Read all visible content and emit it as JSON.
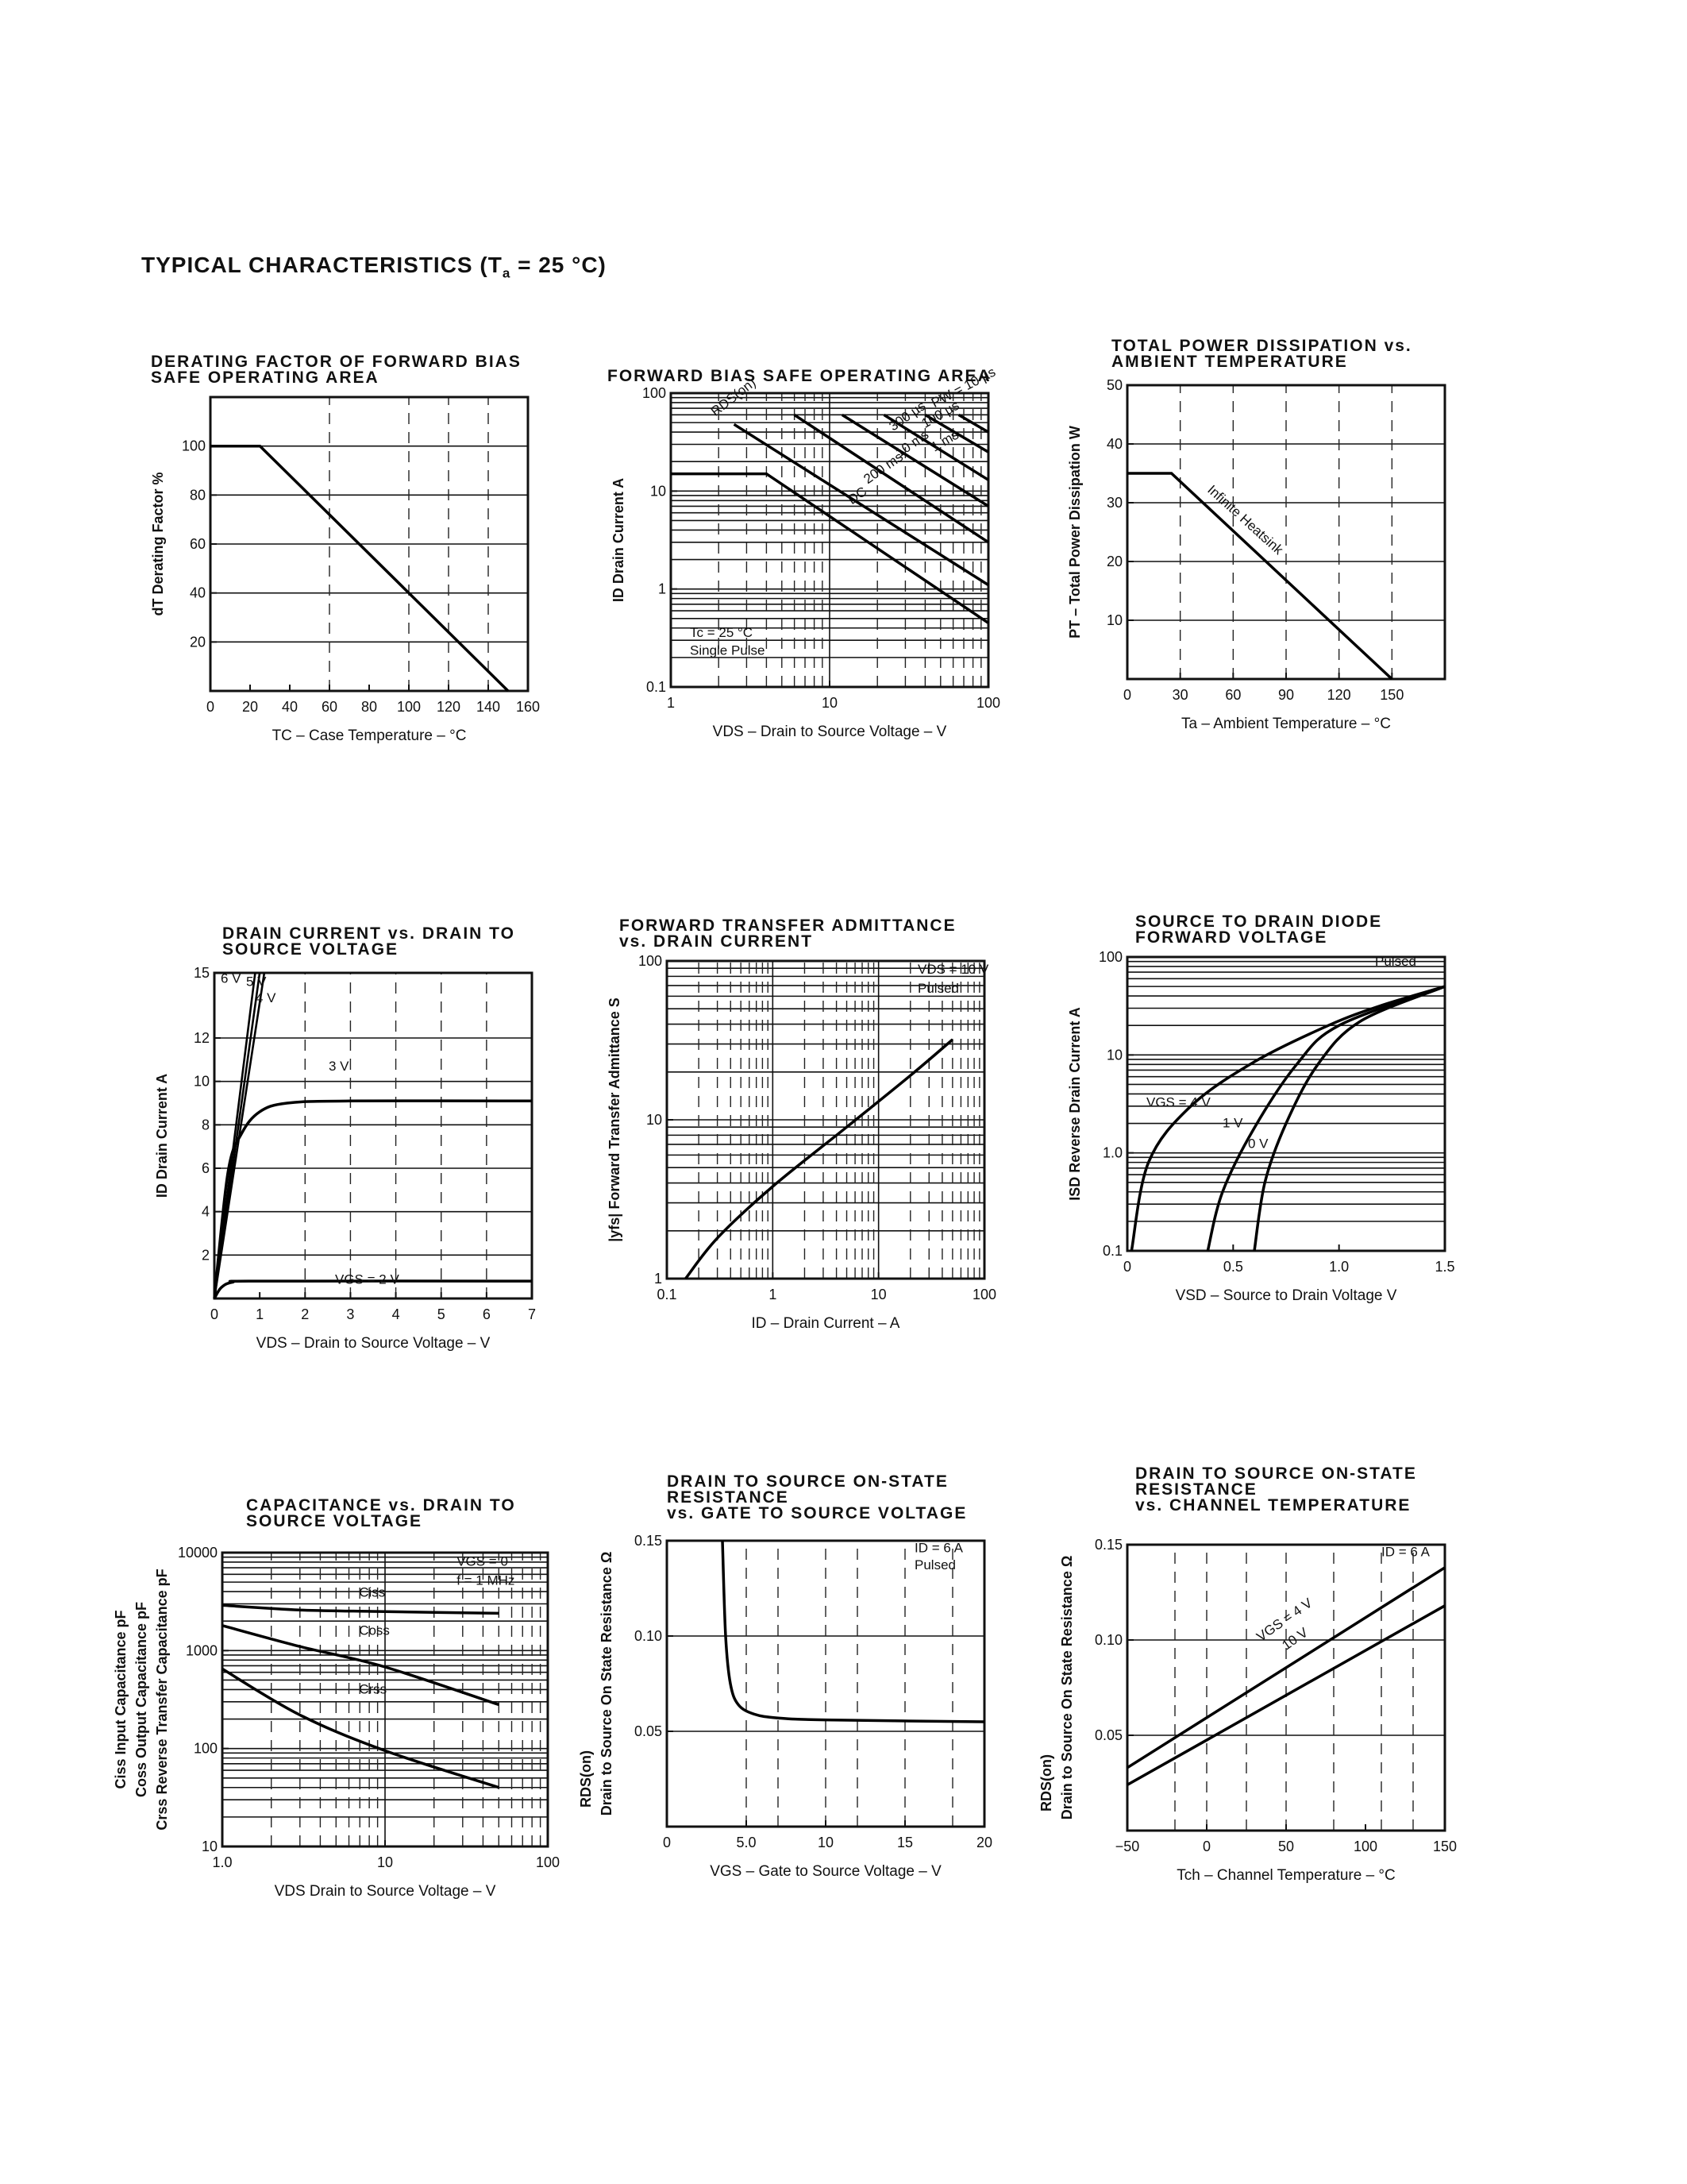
{
  "page": {
    "title_main": "TYPICAL CHARACTERISTICS (T",
    "title_sub": "a",
    "title_tail": " = 25 °C)"
  },
  "chart_data": [
    {
      "id": "derating",
      "type": "line",
      "title_lines": [
        "DERATING FACTOR OF FORWARD BIAS",
        "SAFE OPERATING AREA"
      ],
      "xlabel": "TC – Case Temperature – °C",
      "ylabel": "dT   Derating Factor   %",
      "xlim": [
        0,
        160
      ],
      "ylim": [
        0,
        120
      ],
      "xscale": "linear",
      "yscale": "linear",
      "xticks": [
        0,
        20,
        40,
        60,
        80,
        100,
        120,
        140,
        160
      ],
      "yticks": [
        20,
        40,
        60,
        80,
        100
      ],
      "series": [
        {
          "x": [
            0,
            25,
            150
          ],
          "y": [
            100,
            100,
            0
          ]
        }
      ]
    },
    {
      "id": "fbsoa",
      "type": "line",
      "title_lines": [
        "FORWARD BIAS SAFE OPERATING AREA"
      ],
      "xlabel": "VDS – Drain to Source Voltage – V",
      "ylabel": "ID   Drain Current   A",
      "xlim": [
        1,
        100
      ],
      "ylim": [
        0.1,
        100
      ],
      "xscale": "log",
      "yscale": "log",
      "xticks": [
        1,
        10,
        100
      ],
      "xtick_labels": [
        "1",
        "10",
        "100"
      ],
      "yticks": [
        0.1,
        1,
        10,
        100
      ],
      "ytick_labels": [
        "0.1",
        "1",
        "10",
        "100"
      ],
      "annotations": [
        "RDS(on)",
        "PW = 10 µs",
        "100 µs",
        "300 µs",
        "1 ms",
        "10 ms",
        "200 ms",
        "DC",
        "Tc = 25 °C",
        "Single Pulse"
      ],
      "series": [
        {
          "name": "DC",
          "x": [
            1,
            4,
            100
          ],
          "y": [
            15,
            15,
            0.45
          ]
        },
        {
          "name": "200 ms",
          "x": [
            2.5,
            100
          ],
          "y": [
            48,
            1.1
          ]
        },
        {
          "name": "10 ms",
          "x": [
            6,
            100
          ],
          "y": [
            60,
            3
          ]
        },
        {
          "name": "1 ms",
          "x": [
            12,
            100
          ],
          "y": [
            60,
            7
          ]
        },
        {
          "name": "300 µs",
          "x": [
            22,
            100
          ],
          "y": [
            60,
            13
          ]
        },
        {
          "name": "100 µs",
          "x": [
            40,
            100
          ],
          "y": [
            60,
            25
          ]
        },
        {
          "name": "PW = 10 µs",
          "x": [
            65,
            100
          ],
          "y": [
            60,
            40
          ]
        }
      ]
    },
    {
      "id": "ptotal",
      "type": "line",
      "title_lines": [
        "TOTAL POWER DISSIPATION vs.",
        "AMBIENT TEMPERATURE"
      ],
      "xlabel": "Ta – Ambient Temperature – °C",
      "ylabel": "PT – Total Power Dissipation   W",
      "xlim": [
        0,
        180
      ],
      "ylim": [
        0,
        50
      ],
      "xscale": "linear",
      "yscale": "linear",
      "xticks": [
        0,
        30,
        60,
        90,
        120,
        150
      ],
      "yticks": [
        10,
        20,
        30,
        40,
        50
      ],
      "annotations": [
        "Infinite Heatsink"
      ],
      "series": [
        {
          "x": [
            0,
            25,
            150
          ],
          "y": [
            35,
            35,
            0
          ]
        }
      ]
    },
    {
      "id": "idvds",
      "type": "line",
      "title_lines": [
        "DRAIN CURRENT vs. DRAIN TO",
        "SOURCE VOLTAGE"
      ],
      "xlabel": "VDS – Drain to Source Voltage – V",
      "ylabel": "ID   Drain Current   A",
      "xlim": [
        0,
        7
      ],
      "ylim": [
        0,
        15
      ],
      "xscale": "linear",
      "yscale": "linear",
      "xticks": [
        0,
        1,
        2,
        3,
        4,
        5,
        6,
        7
      ],
      "yticks": [
        2,
        4,
        6,
        8,
        10,
        12,
        15
      ],
      "annotations": [
        "6 V",
        "5 V",
        "4 V",
        "3 V",
        "VGS = 2 V"
      ],
      "series": [
        {
          "name": "6 V",
          "x": [
            0,
            0.9
          ],
          "y": [
            0,
            15
          ]
        },
        {
          "name": "5 V",
          "x": [
            0,
            1.0
          ],
          "y": [
            0,
            15
          ]
        },
        {
          "name": "4 V",
          "x": [
            0,
            1.1
          ],
          "y": [
            0,
            15
          ]
        },
        {
          "name": "3 V",
          "x": [
            0,
            0.3,
            0.6,
            1.0,
            1.6,
            3,
            7
          ],
          "y": [
            0,
            5.8,
            7.6,
            8.6,
            9.0,
            9.1,
            9.1
          ]
        },
        {
          "name": "VGS = 2 V",
          "x": [
            0,
            0.15,
            0.4,
            1,
            7
          ],
          "y": [
            0,
            0.5,
            0.75,
            0.8,
            0.8
          ]
        }
      ]
    },
    {
      "id": "yfs",
      "type": "line",
      "title_lines": [
        "FORWARD TRANSFER ADMITTANCE",
        "vs. DRAIN CURRENT"
      ],
      "xlabel": "ID – Drain Current – A",
      "ylabel": "|yfs|   Forward Transfer Admittance   S",
      "xlim": [
        0.1,
        100
      ],
      "ylim": [
        1,
        100
      ],
      "xscale": "log",
      "yscale": "log",
      "xticks": [
        0.1,
        1,
        10,
        100
      ],
      "xtick_labels": [
        "0.1",
        "1",
        "10",
        "100"
      ],
      "yticks": [
        1,
        10,
        100
      ],
      "ytick_labels": [
        "1",
        "10",
        "100"
      ],
      "annotations": [
        "VDS = 10 V",
        "Pulsed"
      ],
      "series": [
        {
          "x": [
            0.15,
            0.3,
            1,
            5,
            20,
            50
          ],
          "y": [
            1,
            1.8,
            3.8,
            9,
            19,
            32
          ]
        }
      ]
    },
    {
      "id": "isd",
      "type": "line",
      "title_lines": [
        "SOURCE TO DRAIN DIODE",
        "FORWARD VOLTAGE"
      ],
      "xlabel": "VSD – Source to Drain Voltage   V",
      "ylabel": "ISD   Reverse Drain Current   A",
      "xlim": [
        0,
        1.5
      ],
      "ylim": [
        0.1,
        100
      ],
      "xscale": "linear",
      "yscale": "log",
      "xticks": [
        0,
        0.5,
        1.0,
        1.5
      ],
      "xtick_labels": [
        "0",
        "0.5",
        "1.0",
        "1.5"
      ],
      "yticks": [
        0.1,
        1.0,
        10,
        100
      ],
      "ytick_labels": [
        "0.1",
        "1.0",
        "10",
        "100"
      ],
      "annotations": [
        "Pulsed",
        "VGS = 4 V",
        "1 V",
        "0 V"
      ],
      "series": [
        {
          "name": "VGS = 4 V",
          "x": [
            0.02,
            0.1,
            0.3,
            0.6,
            0.95,
            1.2,
            1.5
          ],
          "y": [
            0.1,
            0.8,
            3,
            8.5,
            20,
            32,
            50
          ]
        },
        {
          "name": "1 V",
          "x": [
            0.38,
            0.45,
            0.6,
            0.8,
            1.0,
            1.5
          ],
          "y": [
            0.1,
            0.4,
            1.8,
            8,
            20,
            50
          ]
        },
        {
          "name": "0 V",
          "x": [
            0.6,
            0.65,
            0.75,
            0.9,
            1.1,
            1.5
          ],
          "y": [
            0.1,
            0.5,
            2,
            8,
            22,
            50
          ]
        }
      ]
    },
    {
      "id": "cap",
      "type": "line",
      "title_lines": [
        "CAPACITANCE vs. DRAIN TO",
        "SOURCE VOLTAGE"
      ],
      "xlabel": "VDS   Drain to Source Voltage – V",
      "ylabel_lines": [
        "Ciss   Input Capacitance   pF",
        "Coss   Output Capacitance   pF",
        "Crss   Reverse Transfer Capacitance   pF"
      ],
      "xlim": [
        1,
        100
      ],
      "ylim": [
        10,
        10000
      ],
      "xscale": "log",
      "yscale": "log",
      "xticks": [
        1,
        10,
        100
      ],
      "xtick_labels": [
        "1.0",
        "10",
        "100"
      ],
      "yticks": [
        10,
        100,
        1000,
        10000
      ],
      "ytick_labels": [
        "10",
        "100",
        "1000",
        "10000"
      ],
      "annotations": [
        "VGS = 0",
        "f = 1 MHz"
      ],
      "series": [
        {
          "name": "Ciss",
          "x": [
            1,
            3,
            10,
            50
          ],
          "y": [
            2900,
            2600,
            2500,
            2400
          ]
        },
        {
          "name": "Coss",
          "x": [
            1,
            3,
            10,
            50
          ],
          "y": [
            1800,
            1100,
            680,
            280
          ]
        },
        {
          "name": "Crss",
          "x": [
            1,
            3,
            10,
            50
          ],
          "y": [
            650,
            220,
            95,
            40
          ]
        }
      ]
    },
    {
      "id": "rdsvgs",
      "type": "line",
      "title_lines": [
        "DRAIN TO SOURCE ON-STATE",
        "RESISTANCE",
        "vs. GATE TO SOURCE VOLTAGE"
      ],
      "xlabel": "VGS – Gate to Source Voltage – V",
      "ylabel_lines": [
        "RDS(on)",
        "Drain to Source On State Resistance   Ω"
      ],
      "xlim": [
        0,
        20
      ],
      "ylim": [
        0,
        0.15
      ],
      "xscale": "linear",
      "yscale": "linear",
      "xticks": [
        0,
        5,
        10,
        15,
        20
      ],
      "xtick_labels": [
        "0",
        "5.0",
        "10",
        "15",
        "20"
      ],
      "yticks": [
        0.05,
        0.1,
        0.15
      ],
      "ytick_labels": [
        "0.05",
        "0.10",
        "0.15"
      ],
      "annotations": [
        "ID = 6 A",
        "Pulsed"
      ],
      "series": [
        {
          "x": [
            3.5,
            3.7,
            4,
            4.5,
            5.5,
            7,
            10,
            20
          ],
          "y": [
            0.15,
            0.1,
            0.075,
            0.064,
            0.059,
            0.057,
            0.056,
            0.055
          ]
        }
      ]
    },
    {
      "id": "rdstch",
      "type": "line",
      "title_lines": [
        "DRAIN TO SOURCE ON-STATE",
        "RESISTANCE",
        "vs. CHANNEL TEMPERATURE"
      ],
      "xlabel": "Tch – Channel Temperature – °C",
      "ylabel_lines": [
        "RDS(on)",
        "Drain to Source On State Resistance   Ω"
      ],
      "xlim": [
        -50,
        150
      ],
      "ylim": [
        0,
        0.15
      ],
      "xscale": "linear",
      "yscale": "linear",
      "xticks": [
        -50,
        0,
        50,
        100,
        150
      ],
      "xtick_labels": [
        "−50",
        "0",
        "50",
        "100",
        "150"
      ],
      "yticks": [
        0.05,
        0.1,
        0.15
      ],
      "ytick_labels": [
        "0.05",
        "0.10",
        "0.15"
      ],
      "annotations": [
        "ID = 6 A",
        "VGS = 4 V",
        "10 V"
      ],
      "series": [
        {
          "name": "VGS = 4 V",
          "x": [
            -50,
            150
          ],
          "y": [
            0.033,
            0.138
          ]
        },
        {
          "name": "10 V",
          "x": [
            -50,
            150
          ],
          "y": [
            0.024,
            0.118
          ]
        }
      ]
    }
  ]
}
